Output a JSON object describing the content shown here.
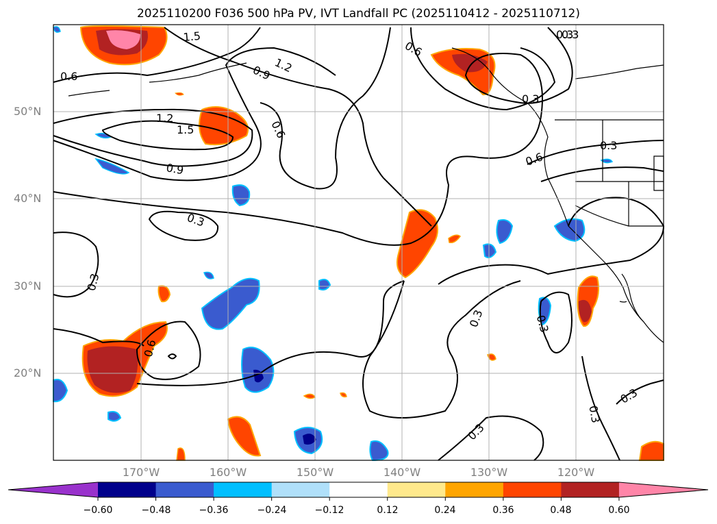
{
  "title": "2025110200 F036 500 hPa PV, IVT Landfall PC (2025110412 - 2025110712)",
  "lat_labels": [
    "50°N",
    "40°N",
    "30°N",
    "20°N"
  ],
  "lon_labels": [
    "170°W",
    "160°W",
    "150°W",
    "140°W",
    "130°W",
    "120°W"
  ],
  "contour_labels": [
    "1.5",
    "1.2",
    "0.9",
    "0.6",
    "0.3",
    "0.6",
    "1.2",
    "1.5",
    "0.9",
    "0.6",
    "0.3",
    "0.3",
    "0.6",
    "0.3",
    "0.3",
    "0.3",
    "0.3",
    "0.3",
    "0.3",
    "0.6",
    "0.3",
    "0.3"
  ],
  "colorbar": {
    "tick_labels": [
      "−0.60",
      "−0.48",
      "−0.36",
      "−0.24",
      "−0.12",
      "0.12",
      "0.24",
      "0.36",
      "0.48",
      "0.60"
    ],
    "colors": [
      "#9932cc",
      "#00008b",
      "#3a5bcf",
      "#00bfff",
      "#b0e0fa",
      "#ffffff",
      "#ffe98c",
      "#ffa500",
      "#ff4500",
      "#b22222",
      "#ff85a8"
    ]
  },
  "colors": {
    "land_outline": "#000000",
    "grid": "#b0b0b0",
    "axis_labels": "#808080"
  }
}
